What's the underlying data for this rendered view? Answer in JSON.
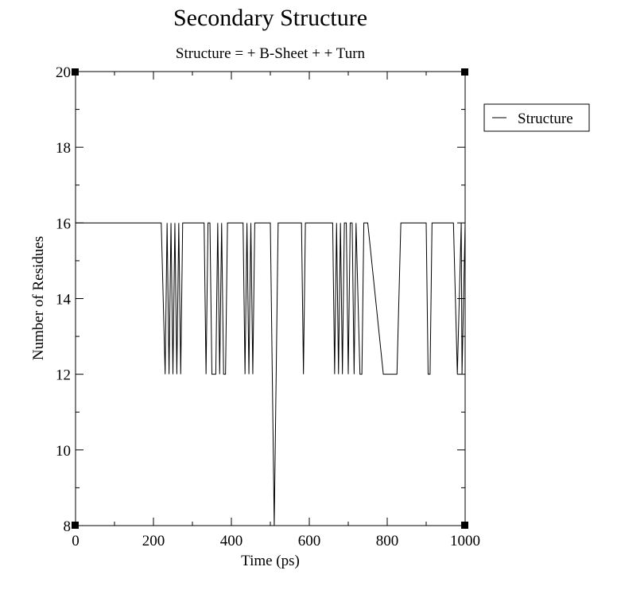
{
  "chart_data": {
    "type": "line",
    "title": "Secondary Structure",
    "subtitle": "Structure =  + B-Sheet +  + Turn",
    "xlabel": "Time (ps)",
    "ylabel": "Number of Residues",
    "xlim": [
      0,
      1000
    ],
    "ylim": [
      8,
      20
    ],
    "x_ticks": [
      0,
      200,
      400,
      600,
      800,
      1000
    ],
    "y_ticks": [
      8,
      10,
      12,
      14,
      16,
      18,
      20
    ],
    "grid": false,
    "legend_position": "right",
    "series": [
      {
        "name": "Structure",
        "color": "#000000",
        "x": [
          0,
          220,
          230,
          235,
          240,
          245,
          250,
          255,
          260,
          265,
          270,
          275,
          280,
          330,
          335,
          340,
          345,
          350,
          360,
          365,
          370,
          375,
          380,
          385,
          390,
          395,
          400,
          430,
          435,
          440,
          445,
          450,
          455,
          460,
          465,
          470,
          500,
          505,
          510,
          515,
          520,
          580,
          585,
          590,
          600,
          660,
          665,
          670,
          675,
          680,
          685,
          690,
          695,
          700,
          705,
          710,
          715,
          720,
          730,
          735,
          740,
          745,
          750,
          790,
          825,
          835,
          900,
          905,
          910,
          915,
          920,
          960,
          970,
          980,
          990,
          992,
          1000
        ],
        "y": [
          16,
          16,
          12,
          16,
          12,
          16,
          12,
          16,
          12,
          16,
          12,
          16,
          16,
          16,
          12,
          16,
          16,
          12,
          12,
          16,
          12,
          16,
          12,
          12,
          16,
          16,
          16,
          16,
          12,
          16,
          12,
          16,
          12,
          16,
          16,
          16,
          16,
          12,
          8,
          12,
          16,
          16,
          12,
          16,
          16,
          16,
          12,
          16,
          12,
          16,
          12,
          16,
          16,
          12,
          16,
          16,
          12,
          16,
          12,
          12,
          16,
          16,
          16,
          12,
          12,
          16,
          16,
          12,
          12,
          16,
          16,
          16,
          16,
          12,
          16,
          12,
          16
        ]
      }
    ]
  }
}
